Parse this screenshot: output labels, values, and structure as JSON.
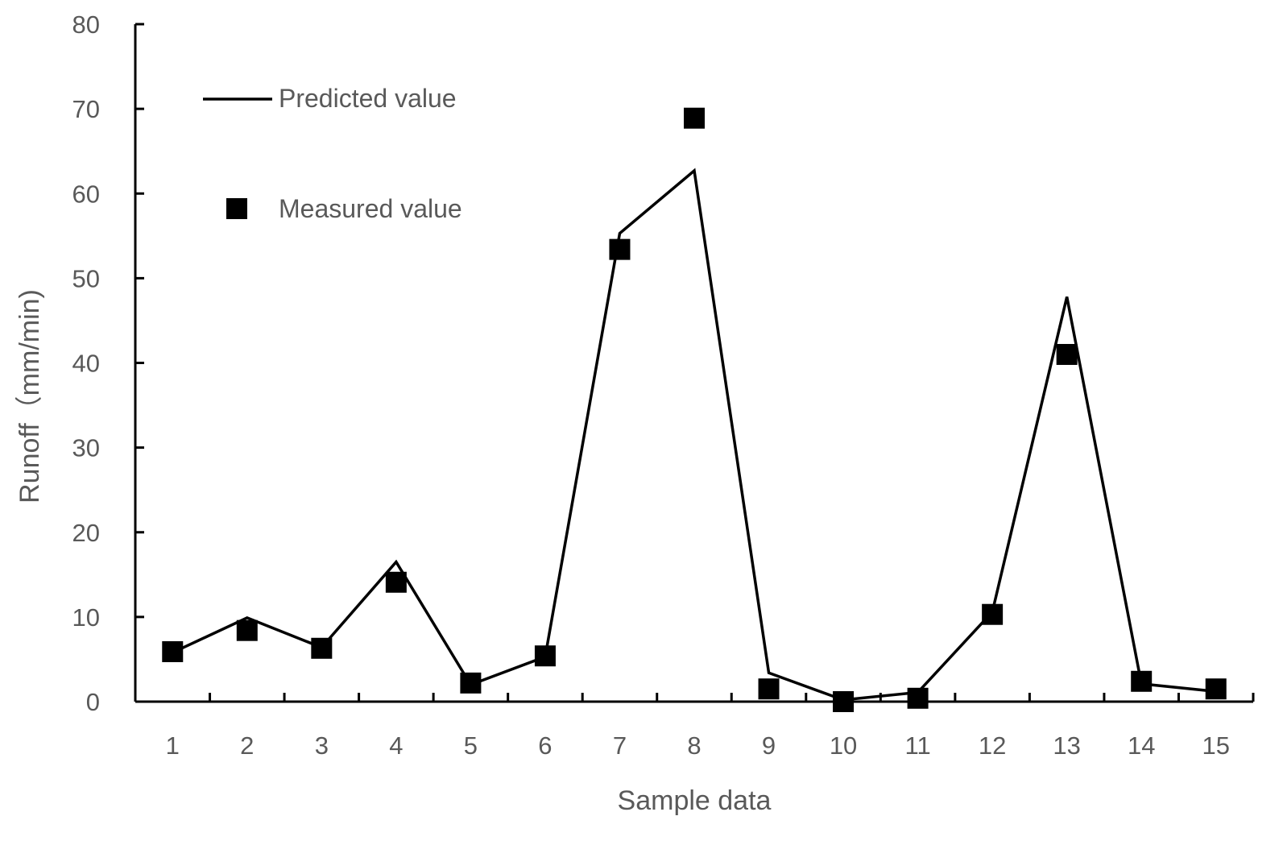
{
  "chart_data": {
    "type": "line",
    "title": "",
    "xlabel": "Sample data",
    "ylabel": "Runoff（mm/min)",
    "categories": [
      "1",
      "2",
      "3",
      "4",
      "5",
      "6",
      "7",
      "8",
      "9",
      "10",
      "11",
      "12",
      "13",
      "14",
      "15"
    ],
    "ylim": [
      0,
      80
    ],
    "yticks": [
      0,
      10,
      20,
      30,
      40,
      50,
      60,
      70,
      80
    ],
    "grid": false,
    "legend_position": "top-left",
    "series": [
      {
        "name": "Predicted value",
        "style": "line",
        "color": "#000000",
        "values": [
          5.8,
          9.9,
          6.4,
          16.5,
          2.0,
          5.3,
          55.3,
          62.7,
          3.4,
          0.2,
          1.1,
          10.6,
          47.8,
          2.1,
          1.2
        ]
      },
      {
        "name": "Measured value",
        "style": "marker-square",
        "color": "#000000",
        "values": [
          5.9,
          8.4,
          6.3,
          14.1,
          2.2,
          5.4,
          53.4,
          68.9,
          1.5,
          0.0,
          0.4,
          10.3,
          41.0,
          2.4,
          1.5
        ]
      }
    ]
  }
}
